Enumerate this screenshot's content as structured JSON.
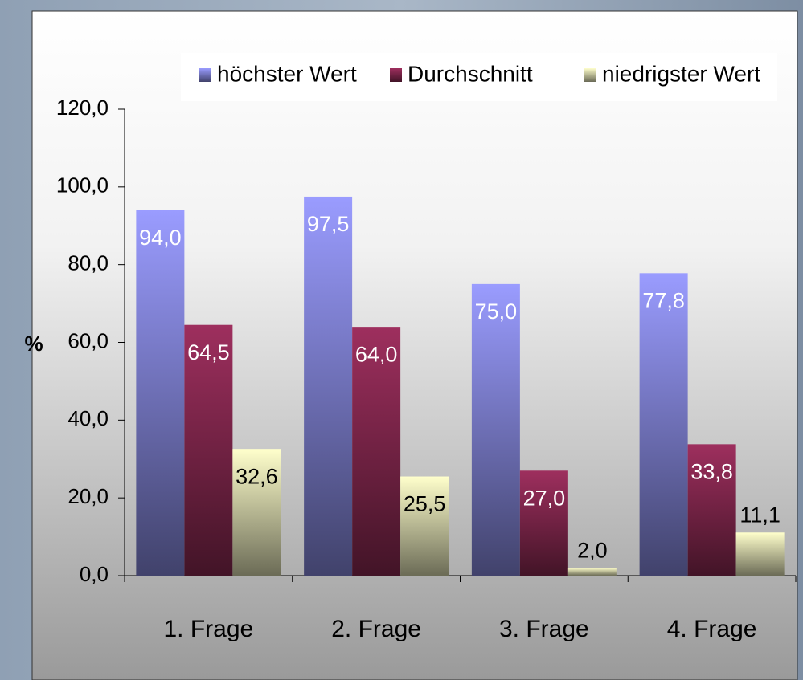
{
  "chart_data": {
    "type": "bar",
    "categories": [
      "1. Frage",
      "2. Frage",
      "3. Frage",
      "4. Frage"
    ],
    "series": [
      {
        "name": "höchster Wert",
        "color": "#9a9cff",
        "values": [
          94.0,
          97.5,
          75.0,
          77.8
        ],
        "value_labels": [
          "94,0",
          "97,5",
          "75,0",
          "77,8"
        ]
      },
      {
        "name": "Durchschnitt",
        "color": "#9e2f5e",
        "values": [
          64.5,
          64.0,
          27.0,
          33.8
        ],
        "value_labels": [
          "64,5",
          "64,0",
          "27,0",
          "33,8"
        ]
      },
      {
        "name": "niedrigster Wert",
        "color": "#ffffcc",
        "values": [
          32.6,
          25.5,
          2.0,
          11.1
        ],
        "value_labels": [
          "32,6",
          "25,5",
          "2,0",
          "11,1"
        ]
      }
    ],
    "ylabel": "%",
    "ylim": [
      0,
      120
    ],
    "yticks": [
      {
        "value": 0,
        "label": "0,0"
      },
      {
        "value": 20,
        "label": "20,0"
      },
      {
        "value": 40,
        "label": "40,0"
      },
      {
        "value": 60,
        "label": "60,0"
      },
      {
        "value": 80,
        "label": "80,0"
      },
      {
        "value": 100,
        "label": "100,0"
      },
      {
        "value": 120,
        "label": "120,0"
      }
    ],
    "legend": "top"
  }
}
